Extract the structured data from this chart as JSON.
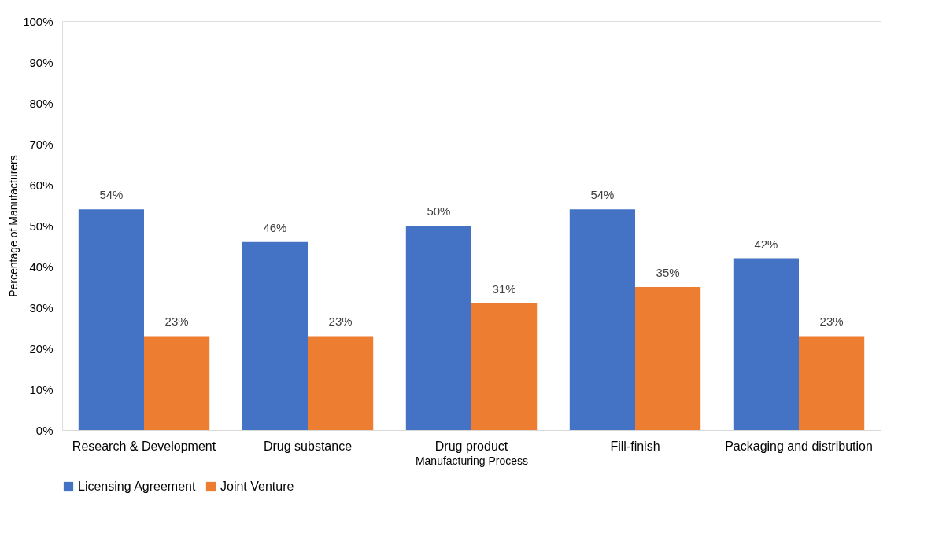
{
  "chart_data": {
    "type": "bar",
    "xlabel": "Manufacturing Process",
    "ylabel": "Percentage of Manufacturers",
    "categories": [
      "Research & Development",
      "Drug substance",
      "Drug product",
      "Fill-finish",
      "Packaging and distribution"
    ],
    "series": [
      {
        "name": "Licensing Agreement",
        "color": "#4472c4",
        "values": [
          54,
          46,
          50,
          54,
          42
        ],
        "value_labels": [
          "54%",
          "46%",
          "50%",
          "54%",
          "42%"
        ]
      },
      {
        "name": "Joint Venture",
        "color": "#ed7d31",
        "values": [
          23,
          23,
          31,
          35,
          23
        ],
        "value_labels": [
          "23%",
          "23%",
          "31%",
          "35%",
          "23%"
        ]
      }
    ],
    "ylim": [
      0,
      100
    ],
    "yticks": [
      {
        "value": 0,
        "label": "0%"
      },
      {
        "value": 10,
        "label": "10%"
      },
      {
        "value": 20,
        "label": "20%"
      },
      {
        "value": 30,
        "label": "30%"
      },
      {
        "value": 40,
        "label": "40%"
      },
      {
        "value": 50,
        "label": "50%"
      },
      {
        "value": 60,
        "label": "60%"
      },
      {
        "value": 70,
        "label": "70%"
      },
      {
        "value": 80,
        "label": "80%"
      },
      {
        "value": 90,
        "label": "90%"
      },
      {
        "value": 100,
        "label": "100%"
      }
    ],
    "grid": false,
    "legend": "bottom"
  }
}
